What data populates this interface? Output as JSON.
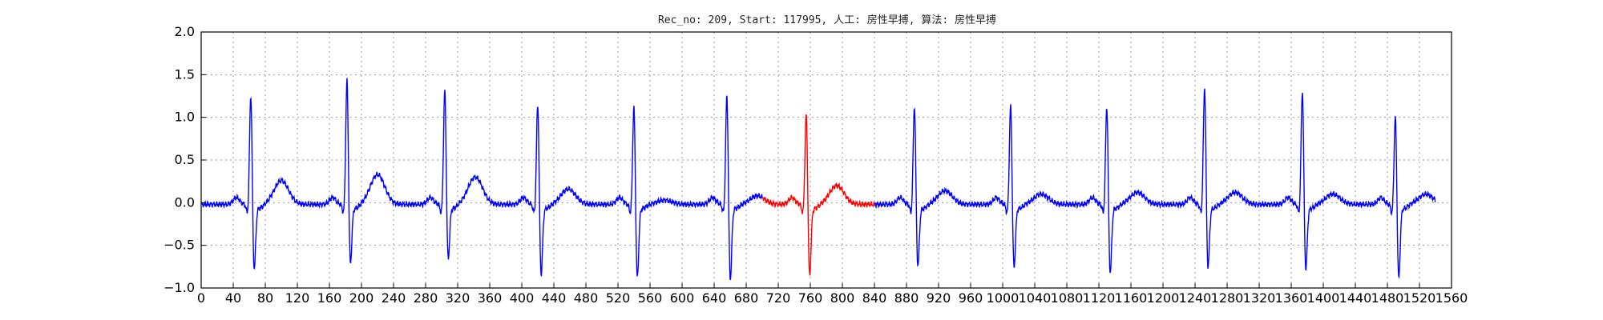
{
  "chart_data": {
    "type": "line",
    "title": "Rec_no: 209, Start: 117995, 人工: 房性早搏, 算法: 房性早搏",
    "xlabel": "",
    "ylabel": "",
    "xlim": [
      0,
      1560
    ],
    "ylim": [
      -1.0,
      2.0
    ],
    "yticks": [
      -1.0,
      -0.5,
      0.0,
      0.5,
      1.0,
      1.5,
      2.0
    ],
    "ytick_labels": [
      "−1.0",
      "−0.5",
      "0.0",
      "0.5",
      "1.0",
      "1.5",
      "2.0"
    ],
    "xticks": [
      0,
      40,
      80,
      120,
      160,
      200,
      240,
      280,
      320,
      360,
      400,
      440,
      480,
      520,
      560,
      600,
      640,
      680,
      720,
      760,
      800,
      840,
      880,
      920,
      960,
      1000,
      1040,
      1080,
      1120,
      1160,
      1200,
      1240,
      1280,
      1320,
      1360,
      1400,
      1440,
      1480,
      1520,
      1560
    ],
    "grid": true,
    "beats": [
      {
        "r": 62,
        "amp": 1.35,
        "s": -0.78,
        "t": 0.28,
        "color": "blue"
      },
      {
        "r": 182,
        "amp": 1.52,
        "s": -0.72,
        "t": 0.35,
        "color": "blue"
      },
      {
        "r": 304,
        "amp": 1.4,
        "s": -0.66,
        "t": 0.32,
        "color": "blue"
      },
      {
        "r": 420,
        "amp": 1.25,
        "s": -0.84,
        "t": 0.18,
        "color": "blue"
      },
      {
        "r": 540,
        "amp": 1.22,
        "s": -0.88,
        "t": 0.05,
        "color": "blue"
      },
      {
        "r": 656,
        "amp": 1.35,
        "s": -0.9,
        "t": 0.1,
        "color": "blue"
      },
      {
        "r": 755,
        "amp": 1.13,
        "s": -0.85,
        "t": 0.22,
        "color": "red"
      },
      {
        "r": 890,
        "amp": 1.22,
        "s": -0.74,
        "t": 0.16,
        "color": "blue"
      },
      {
        "r": 1010,
        "amp": 1.22,
        "s": -0.76,
        "t": 0.12,
        "color": "blue"
      },
      {
        "r": 1130,
        "amp": 1.22,
        "s": -0.82,
        "t": 0.14,
        "color": "blue"
      },
      {
        "r": 1252,
        "amp": 1.44,
        "s": -0.76,
        "t": 0.14,
        "color": "blue"
      },
      {
        "r": 1374,
        "amp": 1.4,
        "s": -0.78,
        "t": 0.12,
        "color": "blue"
      },
      {
        "r": 1490,
        "amp": 1.1,
        "s": -0.88,
        "t": 0.12,
        "color": "blue"
      }
    ],
    "series": [
      {
        "color": "blue",
        "x_range": [
          0,
          700
        ]
      },
      {
        "color": "red",
        "x_range": [
          700,
          840
        ]
      },
      {
        "color": "blue",
        "x_range": [
          840,
          1560
        ]
      }
    ]
  }
}
